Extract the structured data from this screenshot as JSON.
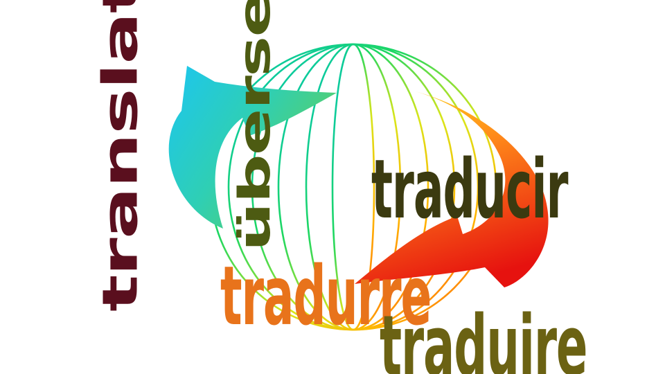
{
  "words": {
    "translate": "translate",
    "ubersetzen": "übersetzen",
    "traducir": "traducir",
    "tradurre": "tradurre",
    "traduire": "traduire"
  },
  "colors": {
    "background": "#ffffff",
    "translate": "#5a0f1e",
    "ubersetzen": "#4d5b12",
    "traducir": "#3b3a10",
    "tradurre": "#e8731b",
    "traduire": "#6b6213",
    "arrow_left_start": "#1cc6f0",
    "arrow_left_end": "#5fcf5a",
    "arrow_right_start": "#ffd21e",
    "arrow_right_end": "#e6120f",
    "globe_gradient": [
      "#00c2c7",
      "#1ed760",
      "#d9e51a",
      "#ffb400",
      "#ff2a1a"
    ]
  },
  "icons": [
    "globe-icon",
    "circular-arrows-icon"
  ]
}
